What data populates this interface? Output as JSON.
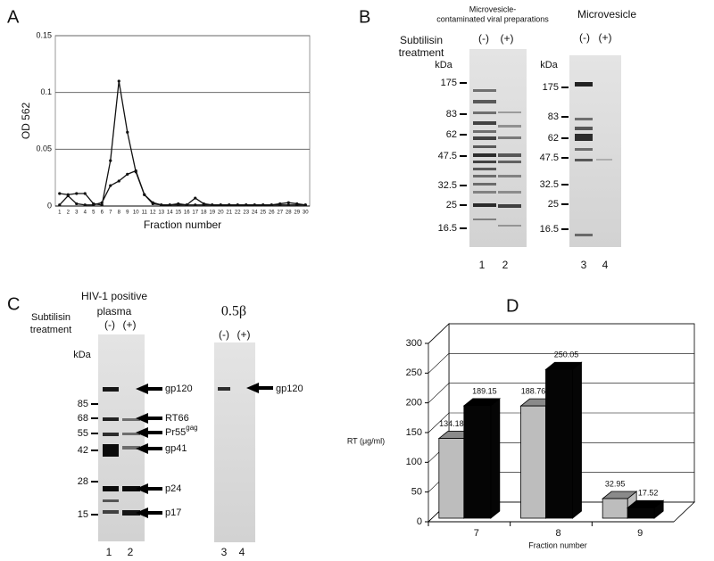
{
  "chart_data": [
    {
      "type": "line",
      "panel": "A",
      "x_label": "Fraction number",
      "y_label": "OD 562",
      "categories": [
        "1",
        "2",
        "3",
        "4",
        "5",
        "6",
        "7",
        "8",
        "9",
        "10",
        "11",
        "12",
        "13",
        "14",
        "15",
        "16",
        "17",
        "18",
        "19",
        "20",
        "21",
        "22",
        "23",
        "24",
        "25",
        "26",
        "27",
        "28",
        "29",
        "30"
      ],
      "series": [
        {
          "color": "#111111",
          "values": [
            0.011,
            0.01,
            0.011,
            0.011,
            0.002,
            0.001,
            0.04,
            0.11,
            0.065,
            0.03,
            0.01,
            0.002,
            0.001,
            0.001,
            0.002,
            0.001,
            0.007,
            0.002,
            0.001,
            0.001,
            0.001,
            0.001,
            0.001,
            0.001,
            0.001,
            0.001,
            0.002,
            0.003,
            0.002,
            0.001
          ]
        },
        {
          "color": "#111111",
          "values": [
            0.001,
            0.009,
            0.002,
            0.001,
            0.001,
            0.003,
            0.018,
            0.022,
            0.028,
            0.031,
            0.01,
            0.003,
            0.001,
            0.001,
            0.001,
            0.001,
            0.001,
            0.001,
            0.001,
            0.001,
            0.001,
            0.001,
            0.001,
            0.001,
            0.001,
            0.001,
            0.001,
            0.001,
            0.001,
            0.001
          ]
        }
      ],
      "ylim": [
        0,
        0.15
      ],
      "yticks": [
        0,
        0.05,
        0.1,
        0.15
      ],
      "grid": true
    },
    {
      "type": "bar3d",
      "panel": "D",
      "x_label": "Fraction number",
      "y_label": "RT (μg/ml)",
      "categories": [
        "7",
        "8",
        "9"
      ],
      "series": [
        {
          "color": "#bdbdbd",
          "values": [
            134.18,
            188.76,
            32.95
          ]
        },
        {
          "color": "#050505",
          "values": [
            189.15,
            250.05,
            17.52
          ]
        }
      ],
      "ylim": [
        0,
        300
      ],
      "yticks": [
        0,
        50,
        100,
        150,
        200,
        250,
        300
      ],
      "grid": true
    }
  ],
  "gel_b": {
    "subtilisin": [
      "Subtilisin",
      "treatment"
    ],
    "viral_header": [
      "Microvesicle-",
      "contaminated viral preparations"
    ],
    "viral_lanes": [
      "(-)",
      "(+)"
    ],
    "mv_header": "Microvesicle",
    "mv_lanes": [
      "(-)",
      "(+)"
    ],
    "kda": "kDa",
    "markers": [
      175,
      83,
      62,
      47.5,
      32.5,
      25,
      16.5
    ],
    "lane_numbers": [
      "1",
      "2",
      "3",
      "4"
    ]
  },
  "gel_c": {
    "plasma_header": [
      "HIV-1 positive",
      "plasma"
    ],
    "subtilisin": [
      "Subtilisin",
      "treatment"
    ],
    "lanes": [
      "(-)",
      "(+)"
    ],
    "kda": "kDa",
    "markers": [
      85,
      68,
      55,
      42,
      28,
      15
    ],
    "bands": [
      {
        "text": "gp120"
      },
      {
        "text": "RT66"
      },
      {
        "text": "Pr55",
        "sup": "gag"
      },
      {
        "text": "gp41"
      },
      {
        "text": "p24"
      },
      {
        "text": "p17"
      }
    ],
    "beta_title": "0.5β",
    "beta_lanes": [
      "(-)",
      "(+)"
    ],
    "beta_band": "gp120",
    "lane_numbers": [
      "1",
      "2",
      "3",
      "4"
    ]
  },
  "panel_labels": [
    "A",
    "B",
    "C",
    "D"
  ]
}
